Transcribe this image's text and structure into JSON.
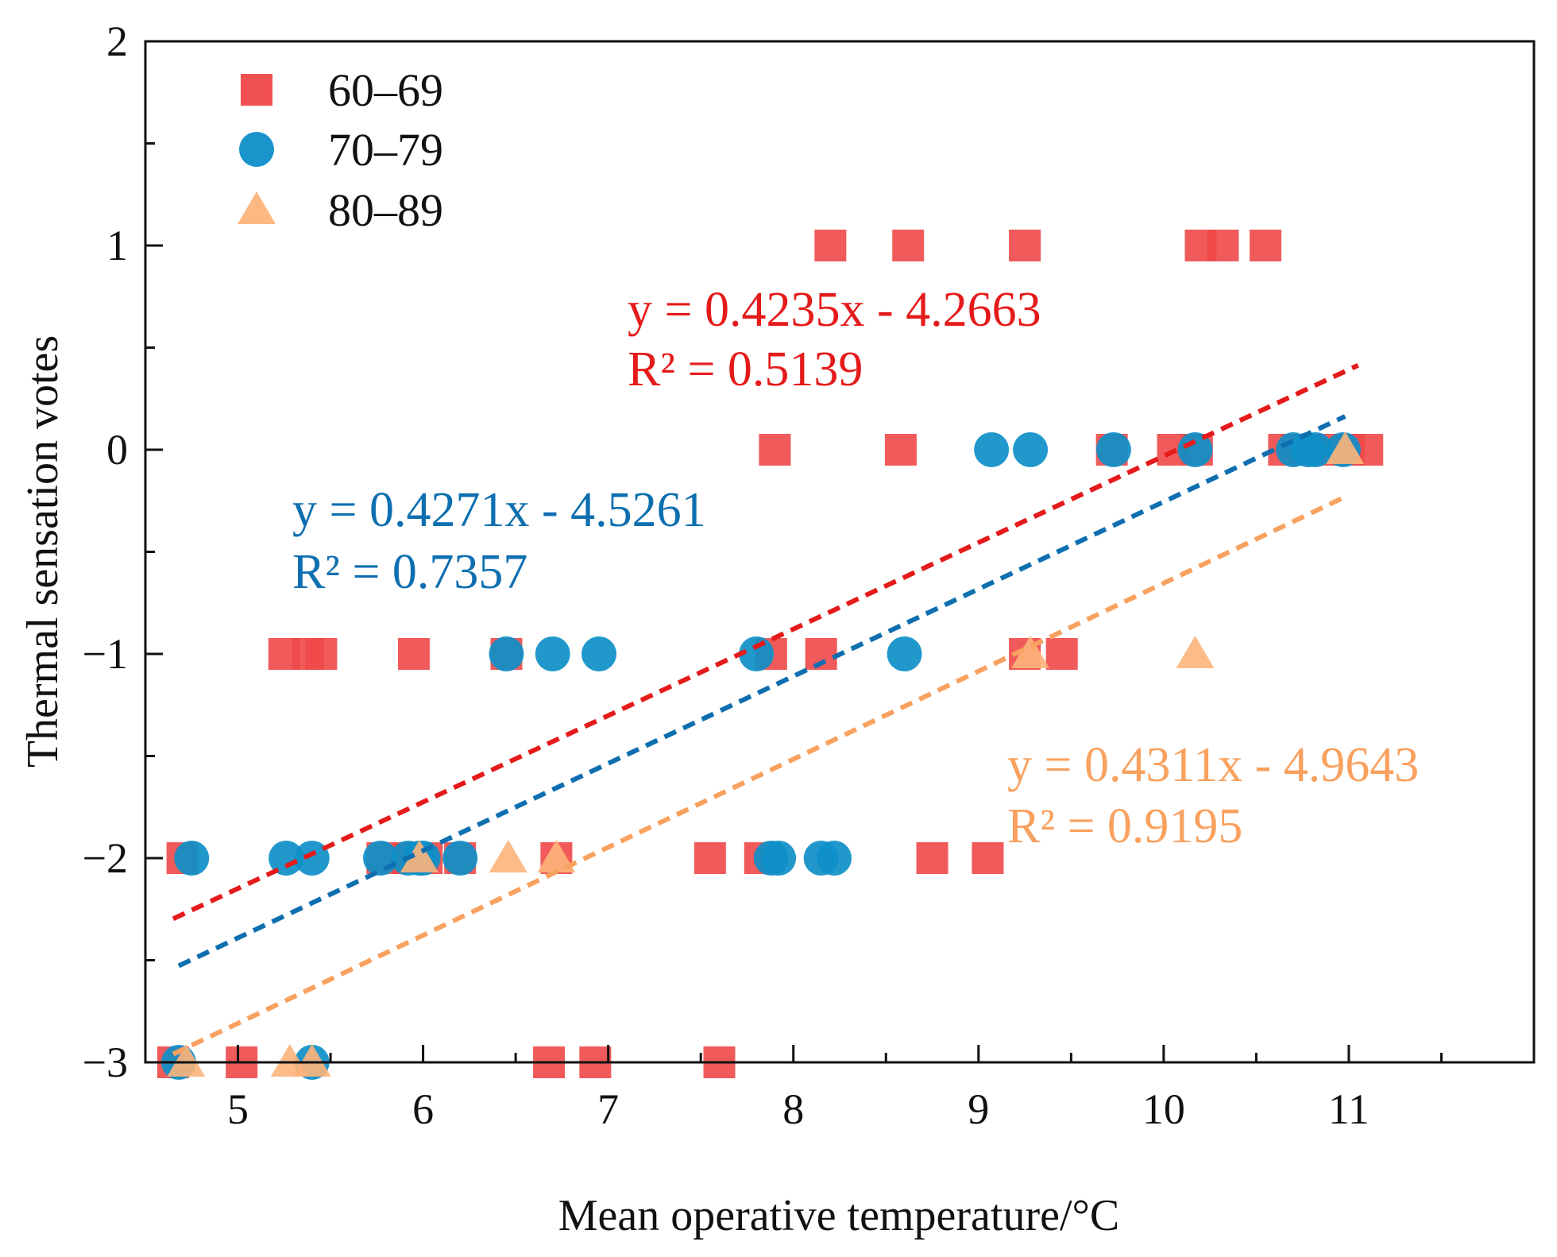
{
  "chart_data": {
    "type": "scatter",
    "xlabel": "Mean operative temperature/°C",
    "ylabel": "Thermal sensation votes",
    "xlim": [
      4.5,
      12.0
    ],
    "ylim": [
      -3,
      2
    ],
    "xticks": [
      5,
      6,
      7,
      8,
      9,
      10,
      11
    ],
    "yticks": [
      -3,
      -2,
      -1,
      0,
      1,
      2
    ],
    "ytick_labels": [
      "−3",
      "−2",
      "−1",
      "0",
      "1",
      "2"
    ],
    "legend_position": "top-left",
    "series": [
      {
        "name": "60–69",
        "marker": "square",
        "color": "#f04848",
        "points": [
          [
            4.65,
            -3
          ],
          [
            5.02,
            -3
          ],
          [
            6.68,
            -3
          ],
          [
            6.93,
            -3
          ],
          [
            7.6,
            -3
          ],
          [
            4.7,
            -2
          ],
          [
            5.78,
            -2
          ],
          [
            5.92,
            -2
          ],
          [
            6.02,
            -2
          ],
          [
            6.2,
            -2
          ],
          [
            6.72,
            -2
          ],
          [
            7.55,
            -2
          ],
          [
            7.82,
            -2
          ],
          [
            8.75,
            -2
          ],
          [
            9.05,
            -2
          ],
          [
            5.25,
            -1
          ],
          [
            5.38,
            -1
          ],
          [
            5.45,
            -1
          ],
          [
            5.95,
            -1
          ],
          [
            6.45,
            -1
          ],
          [
            7.88,
            -1
          ],
          [
            8.15,
            -1
          ],
          [
            9.25,
            -1
          ],
          [
            9.45,
            -1
          ],
          [
            7.9,
            0
          ],
          [
            8.58,
            0
          ],
          [
            9.72,
            0
          ],
          [
            10.05,
            0
          ],
          [
            10.18,
            0
          ],
          [
            10.65,
            0
          ],
          [
            10.72,
            0
          ],
          [
            10.9,
            0
          ],
          [
            11.0,
            0
          ],
          [
            11.1,
            0
          ],
          [
            8.2,
            1
          ],
          [
            8.62,
            1
          ],
          [
            9.25,
            1
          ],
          [
            10.2,
            1
          ],
          [
            10.32,
            1
          ],
          [
            10.55,
            1
          ]
        ],
        "fit": {
          "slope": 0.4235,
          "intercept": -4.2663,
          "x_range": [
            4.65,
            11.05
          ],
          "equation": "y = 0.4235x - 4.2663",
          "r2": "R² = 0.5139"
        }
      },
      {
        "name": "70–79",
        "marker": "circle",
        "color": "#0e8fc8",
        "points": [
          [
            4.68,
            -3
          ],
          [
            5.4,
            -3
          ],
          [
            4.75,
            -2
          ],
          [
            5.26,
            -2
          ],
          [
            5.4,
            -2
          ],
          [
            5.77,
            -2
          ],
          [
            5.92,
            -2
          ],
          [
            5.98,
            -2
          ],
          [
            6.0,
            -2
          ],
          [
            6.2,
            -2
          ],
          [
            7.88,
            -2
          ],
          [
            7.92,
            -2
          ],
          [
            8.15,
            -2
          ],
          [
            8.22,
            -2
          ],
          [
            6.45,
            -1
          ],
          [
            6.7,
            -1
          ],
          [
            6.95,
            -1
          ],
          [
            7.8,
            -1
          ],
          [
            8.6,
            -1
          ],
          [
            9.07,
            0
          ],
          [
            9.28,
            0
          ],
          [
            9.73,
            0
          ],
          [
            10.17,
            0
          ],
          [
            10.7,
            0
          ],
          [
            10.78,
            0
          ],
          [
            10.82,
            0
          ],
          [
            10.97,
            0
          ]
        ],
        "fit": {
          "slope": 0.4271,
          "intercept": -4.5261,
          "x_range": [
            4.68,
            10.98
          ],
          "equation": "y = 0.4271x - 4.5261",
          "r2": "R² = 0.7357"
        }
      },
      {
        "name": "80–89",
        "marker": "triangle",
        "color": "#fdb47a",
        "points": [
          [
            4.72,
            -3
          ],
          [
            5.28,
            -3
          ],
          [
            5.4,
            -3
          ],
          [
            5.98,
            -2
          ],
          [
            6.46,
            -2
          ],
          [
            6.72,
            -2
          ],
          [
            9.28,
            -1
          ],
          [
            10.17,
            -1
          ],
          [
            10.98,
            0
          ]
        ],
        "fit": {
          "slope": 0.4311,
          "intercept": -4.9643,
          "x_range": [
            4.65,
            10.97
          ],
          "equation": "y = 0.4311x - 4.9643",
          "r2": "R² = 0.9195"
        }
      }
    ]
  }
}
